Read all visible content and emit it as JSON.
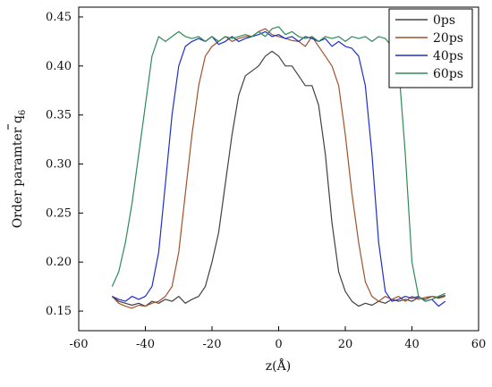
{
  "chart_data": {
    "type": "line",
    "xlabel": "z(Å)",
    "ylabel": "Order paramter q",
    "ylabel_subscript": "6",
    "xlim": [
      -60,
      60
    ],
    "ylim": [
      0.13,
      0.46
    ],
    "xticks": [
      -60,
      -40,
      -20,
      0,
      20,
      40,
      60
    ],
    "yticks": [
      0.15,
      0.2,
      0.25,
      0.3,
      0.35,
      0.4,
      0.45
    ],
    "legend_position": "top-right",
    "series": [
      {
        "name": "0ps",
        "color": "#404040",
        "x": [
          -50,
          -48,
          -46,
          -44,
          -42,
          -40,
          -38,
          -36,
          -34,
          -32,
          -30,
          -28,
          -26,
          -24,
          -22,
          -20,
          -18,
          -16,
          -14,
          -12,
          -10,
          -8,
          -6,
          -4,
          -2,
          0,
          2,
          4,
          6,
          8,
          10,
          12,
          14,
          16,
          18,
          20,
          22,
          24,
          26,
          28,
          30,
          32,
          34,
          36,
          38,
          40,
          42,
          44,
          46,
          48,
          50
        ],
        "y": [
          0.165,
          0.16,
          0.158,
          0.156,
          0.158,
          0.155,
          0.16,
          0.158,
          0.162,
          0.16,
          0.165,
          0.158,
          0.162,
          0.165,
          0.175,
          0.2,
          0.23,
          0.28,
          0.33,
          0.37,
          0.39,
          0.395,
          0.4,
          0.41,
          0.415,
          0.41,
          0.4,
          0.4,
          0.39,
          0.38,
          0.38,
          0.36,
          0.31,
          0.24,
          0.19,
          0.17,
          0.16,
          0.155,
          0.158,
          0.156,
          0.16,
          0.158,
          0.162,
          0.16,
          0.162,
          0.16,
          0.164,
          0.162,
          0.165,
          0.164,
          0.166
        ]
      },
      {
        "name": "20ps",
        "color": "#a0522d",
        "x": [
          -50,
          -48,
          -46,
          -44,
          -42,
          -40,
          -38,
          -36,
          -34,
          -32,
          -30,
          -28,
          -26,
          -24,
          -22,
          -20,
          -18,
          -16,
          -14,
          -12,
          -10,
          -8,
          -6,
          -4,
          -2,
          0,
          2,
          4,
          6,
          8,
          10,
          12,
          14,
          16,
          18,
          20,
          22,
          24,
          26,
          28,
          30,
          32,
          34,
          36,
          38,
          40,
          42,
          44,
          46,
          48,
          50
        ],
        "y": [
          0.165,
          0.158,
          0.155,
          0.153,
          0.156,
          0.155,
          0.158,
          0.16,
          0.165,
          0.175,
          0.21,
          0.27,
          0.33,
          0.38,
          0.41,
          0.42,
          0.425,
          0.43,
          0.425,
          0.428,
          0.43,
          0.43,
          0.435,
          0.438,
          0.432,
          0.43,
          0.428,
          0.426,
          0.425,
          0.42,
          0.43,
          0.42,
          0.41,
          0.4,
          0.38,
          0.33,
          0.27,
          0.22,
          0.18,
          0.165,
          0.16,
          0.165,
          0.162,
          0.165,
          0.16,
          0.165,
          0.162,
          0.164,
          0.165,
          0.163,
          0.165
        ]
      },
      {
        "name": "40ps",
        "color": "#1f2fc8",
        "x": [
          -50,
          -48,
          -46,
          -44,
          -42,
          -40,
          -38,
          -36,
          -34,
          -32,
          -30,
          -28,
          -26,
          -24,
          -22,
          -20,
          -18,
          -16,
          -14,
          -12,
          -10,
          -8,
          -6,
          -4,
          -2,
          0,
          2,
          4,
          6,
          8,
          10,
          12,
          14,
          16,
          18,
          20,
          22,
          24,
          26,
          28,
          30,
          32,
          34,
          36,
          38,
          40,
          42,
          44,
          46,
          48,
          50
        ],
        "y": [
          0.165,
          0.162,
          0.16,
          0.165,
          0.162,
          0.165,
          0.175,
          0.21,
          0.28,
          0.35,
          0.4,
          0.42,
          0.425,
          0.428,
          0.425,
          0.43,
          0.422,
          0.425,
          0.43,
          0.425,
          0.428,
          0.43,
          0.432,
          0.435,
          0.43,
          0.432,
          0.428,
          0.43,
          0.425,
          0.43,
          0.428,
          0.425,
          0.428,
          0.42,
          0.425,
          0.42,
          0.418,
          0.41,
          0.38,
          0.31,
          0.22,
          0.17,
          0.16,
          0.162,
          0.165,
          0.163,
          0.165,
          0.16,
          0.162,
          0.155,
          0.16
        ]
      },
      {
        "name": "60ps",
        "color": "#2e8b57",
        "x": [
          -50,
          -48,
          -46,
          -44,
          -42,
          -40,
          -38,
          -36,
          -34,
          -32,
          -30,
          -28,
          -26,
          -24,
          -22,
          -20,
          -18,
          -16,
          -14,
          -12,
          -10,
          -8,
          -6,
          -4,
          -2,
          0,
          2,
          4,
          6,
          8,
          10,
          12,
          14,
          16,
          18,
          20,
          22,
          24,
          26,
          28,
          30,
          32,
          34,
          36,
          38,
          40,
          42,
          44,
          46,
          48,
          50
        ],
        "y": [
          0.175,
          0.19,
          0.22,
          0.26,
          0.31,
          0.36,
          0.41,
          0.43,
          0.425,
          0.43,
          0.435,
          0.43,
          0.428,
          0.43,
          0.425,
          0.43,
          0.425,
          0.43,
          0.428,
          0.43,
          0.432,
          0.43,
          0.435,
          0.43,
          0.438,
          0.44,
          0.432,
          0.435,
          0.43,
          0.428,
          0.43,
          0.425,
          0.43,
          0.428,
          0.43,
          0.425,
          0.43,
          0.428,
          0.43,
          0.425,
          0.43,
          0.428,
          0.42,
          0.4,
          0.31,
          0.2,
          0.165,
          0.16,
          0.162,
          0.165,
          0.168
        ]
      }
    ]
  }
}
